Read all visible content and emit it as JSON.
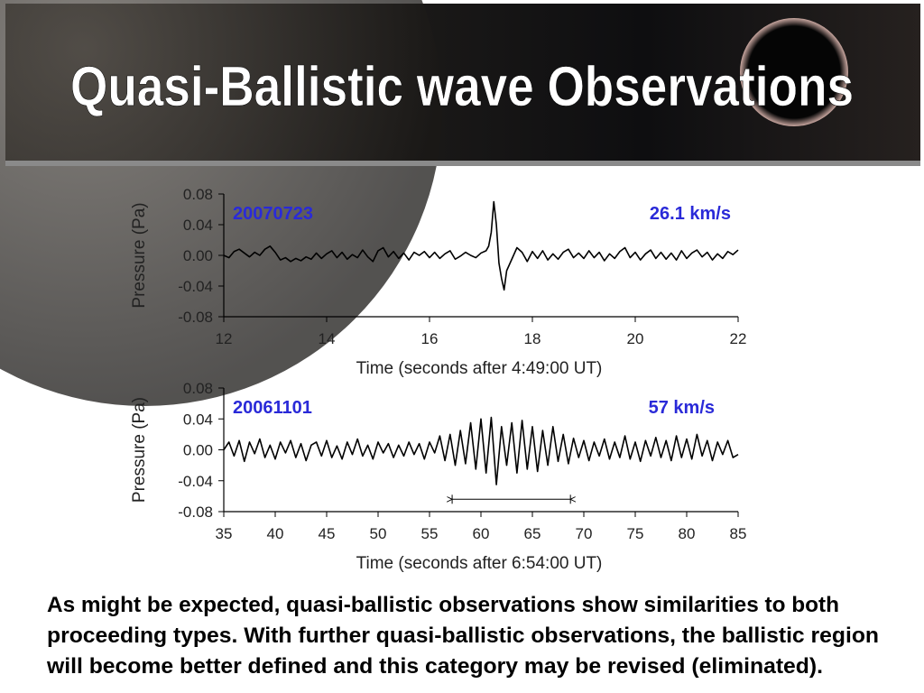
{
  "title": "Quasi-Ballistic wave Observations",
  "body": [
    "As might be expected, quasi-ballistic observations show similarities to both",
    "proceeding types. With further quasi-ballistic observations, the ballistic region",
    "will become better defined and this category may be revised (eliminated)."
  ],
  "chart_data": [
    {
      "type": "line",
      "xlabel": "Time (seconds after 4:49:00 UT)",
      "ylabel": "Pressure (Pa)",
      "labels": [
        "20070723",
        "26.1 km/s"
      ],
      "color": "#000000",
      "xlim": [
        12,
        22
      ],
      "xticks": [
        12,
        14,
        16,
        18,
        20,
        22
      ],
      "ylim": [
        -0.08,
        0.08
      ],
      "yticks": [
        0.08,
        0.04,
        {
          "value": 0,
          "label": "0.00"
        },
        -0.04,
        -0.08
      ],
      "x": [
        12.0,
        12.1,
        12.2,
        12.3,
        12.4,
        12.5,
        12.6,
        12.7,
        12.8,
        12.9,
        13.0,
        13.1,
        13.2,
        13.3,
        13.4,
        13.5,
        13.6,
        13.7,
        13.8,
        13.9,
        14.0,
        14.1,
        14.2,
        14.3,
        14.4,
        14.5,
        14.6,
        14.7,
        14.8,
        14.9,
        15.0,
        15.1,
        15.2,
        15.3,
        15.4,
        15.5,
        15.6,
        15.7,
        15.8,
        15.9,
        16.0,
        16.1,
        16.2,
        16.3,
        16.4,
        16.5,
        16.6,
        16.7,
        16.8,
        16.9,
        17.0,
        17.1,
        17.15,
        17.2,
        17.25,
        17.3,
        17.35,
        17.4,
        17.45,
        17.5,
        17.6,
        17.7,
        17.8,
        17.9,
        18.0,
        18.1,
        18.2,
        18.3,
        18.4,
        18.5,
        18.6,
        18.7,
        18.8,
        18.9,
        19.0,
        19.1,
        19.2,
        19.3,
        19.4,
        19.5,
        19.6,
        19.7,
        19.8,
        19.9,
        20.0,
        20.1,
        20.2,
        20.3,
        20.4,
        20.5,
        20.6,
        20.7,
        20.8,
        20.9,
        21.0,
        21.1,
        21.2,
        21.3,
        21.4,
        21.5,
        21.6,
        21.7,
        21.8,
        21.9,
        22.0
      ],
      "values": [
        0.0,
        -0.003,
        0.005,
        0.008,
        0.003,
        -0.002,
        0.004,
        0.0,
        0.008,
        0.012,
        0.004,
        -0.006,
        -0.003,
        -0.008,
        -0.004,
        -0.007,
        -0.002,
        -0.005,
        0.003,
        -0.004,
        0.002,
        0.006,
        -0.003,
        0.004,
        -0.005,
        0.001,
        -0.003,
        0.007,
        -0.002,
        -0.008,
        0.006,
        0.01,
        -0.002,
        0.005,
        -0.004,
        0.003,
        -0.006,
        0.004,
        0.0,
        0.005,
        -0.003,
        0.004,
        -0.004,
        0.002,
        0.006,
        -0.005,
        -0.001,
        0.004,
        0.0,
        -0.003,
        0.003,
        0.006,
        0.012,
        0.03,
        0.07,
        0.04,
        -0.01,
        -0.03,
        -0.045,
        -0.02,
        -0.005,
        0.01,
        0.004,
        -0.008,
        0.005,
        -0.004,
        0.006,
        -0.006,
        0.002,
        -0.005,
        0.004,
        0.008,
        -0.003,
        0.003,
        -0.004,
        0.006,
        -0.003,
        0.004,
        -0.007,
        0.002,
        -0.004,
        0.005,
        0.01,
        -0.003,
        0.004,
        -0.006,
        0.002,
        0.007,
        -0.004,
        0.004,
        -0.005,
        0.003,
        -0.006,
        0.006,
        -0.004,
        0.003,
        0.007,
        -0.002,
        0.004,
        -0.006,
        0.002,
        -0.004,
        0.005,
        0.001,
        0.007
      ]
    },
    {
      "type": "line",
      "xlabel": "Time (seconds after 6:54:00 UT)",
      "ylabel": "Pressure (Pa)",
      "labels": [
        "20061101",
        "57 km/s"
      ],
      "color": "#000000",
      "xlim": [
        35,
        85
      ],
      "xticks": [
        35,
        40,
        45,
        50,
        55,
        60,
        65,
        70,
        75,
        80,
        85
      ],
      "ylim": [
        -0.08,
        0.08
      ],
      "yticks": [
        0.08,
        0.04,
        {
          "value": 0,
          "label": "0.00"
        },
        -0.04,
        -0.08
      ],
      "span": {
        "x": [
          57.2,
          68.7
        ],
        "y": -0.064
      },
      "x": [
        35,
        35.5,
        36,
        36.5,
        37,
        37.5,
        38,
        38.5,
        39,
        39.5,
        40,
        40.5,
        41,
        41.5,
        42,
        42.5,
        43,
        43.5,
        44,
        44.5,
        45,
        45.5,
        46,
        46.5,
        47,
        47.5,
        48,
        48.5,
        49,
        49.5,
        50,
        50.5,
        51,
        51.5,
        52,
        52.5,
        53,
        53.5,
        54,
        54.5,
        55,
        55.5,
        56,
        56.5,
        57,
        57.5,
        58,
        58.5,
        59,
        59.5,
        60,
        60.5,
        61,
        61.5,
        62,
        62.5,
        63,
        63.5,
        64,
        64.5,
        65,
        65.5,
        66,
        66.5,
        67,
        67.5,
        68,
        68.5,
        69,
        69.5,
        70,
        70.5,
        71,
        71.5,
        72,
        72.5,
        73,
        73.5,
        74,
        74.5,
        75,
        75.5,
        76,
        76.5,
        77,
        77.5,
        78,
        78.5,
        79,
        79.5,
        80,
        80.5,
        81,
        81.5,
        82,
        82.5,
        83,
        83.5,
        84,
        84.5,
        85
      ],
      "values": [
        0,
        0.01,
        -0.008,
        0.012,
        -0.015,
        0.01,
        -0.005,
        0.014,
        -0.01,
        0.006,
        -0.012,
        0.01,
        -0.004,
        0.012,
        -0.01,
        0.008,
        -0.014,
        0.006,
        0.01,
        -0.008,
        0.012,
        -0.01,
        0.005,
        -0.012,
        0.01,
        -0.006,
        0.014,
        -0.008,
        0.006,
        -0.012,
        0.01,
        -0.004,
        0.008,
        -0.01,
        0.006,
        -0.008,
        0.01,
        -0.006,
        0.008,
        -0.012,
        0.01,
        -0.004,
        0.018,
        -0.014,
        0.02,
        -0.02,
        0.025,
        -0.018,
        0.035,
        -0.025,
        0.04,
        -0.03,
        0.042,
        -0.045,
        0.03,
        -0.02,
        0.035,
        -0.03,
        0.038,
        -0.025,
        0.03,
        -0.028,
        0.025,
        -0.02,
        0.03,
        -0.015,
        0.02,
        -0.018,
        0.015,
        -0.01,
        0.012,
        -0.014,
        0.01,
        -0.008,
        0.014,
        -0.012,
        0.01,
        -0.01,
        0.018,
        -0.012,
        0.01,
        -0.015,
        0.012,
        -0.008,
        0.016,
        -0.01,
        0.012,
        -0.014,
        0.018,
        -0.01,
        0.014,
        -0.012,
        0.02,
        -0.008,
        0.012,
        -0.014,
        0.01,
        -0.006,
        0.012,
        -0.01,
        -0.006
      ]
    }
  ]
}
